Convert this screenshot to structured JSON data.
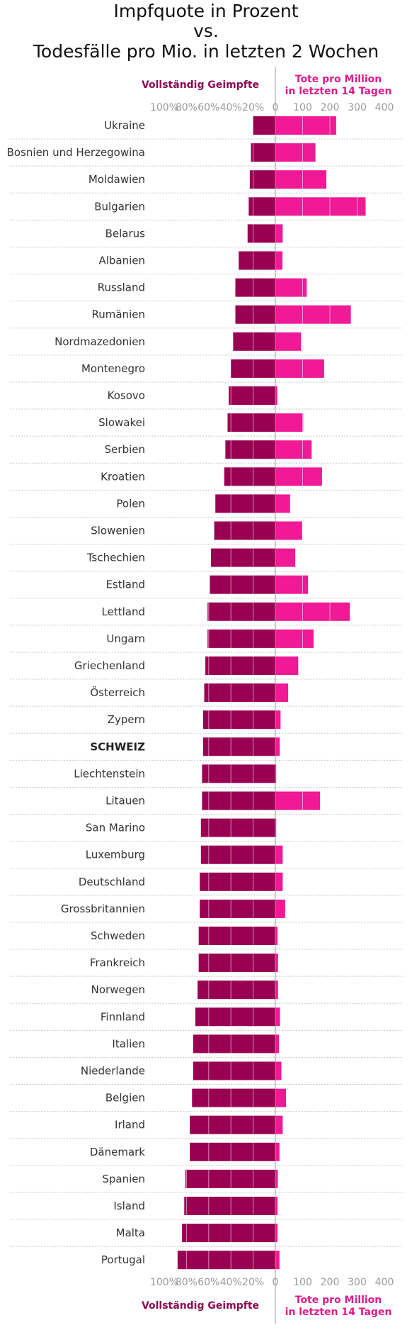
{
  "chart_data": {
    "type": "bar",
    "title_lines": [
      "Impfquote in Prozent",
      "vs.",
      "Todesfälle pro Mio. in letzten 2 Wochen"
    ],
    "left_label": "Vollständig Geimpfte",
    "right_label_lines": [
      "Tote pro Million",
      "in letzten 14 Tagen"
    ],
    "left_ticks": [
      "100%",
      "80%",
      "60%",
      "40%",
      "20%",
      "0"
    ],
    "right_ticks": [
      "100",
      "200",
      "300",
      "400"
    ],
    "left_range": [
      0,
      100
    ],
    "right_range": [
      0,
      400
    ],
    "highlight": "SCHWEIZ",
    "categories": [
      "Ukraine",
      "Bosnien und Herzegowina",
      "Moldawien",
      "Bulgarien",
      "Belarus",
      "Albanien",
      "Russland",
      "Rumänien",
      "Nordmazedonien",
      "Montenegro",
      "Kosovo",
      "Slowakei",
      "Serbien",
      "Kroatien",
      "Polen",
      "Slowenien",
      "Tschechien",
      "Estland",
      "Lettland",
      "Ungarn",
      "Griechenland",
      "Österreich",
      "Zypern",
      "SCHWEIZ",
      "Liechtenstein",
      "Litauen",
      "San Marino",
      "Luxemburg",
      "Deutschland",
      "Grossbritannien",
      "Schweden",
      "Frankreich",
      "Norwegen",
      "Finnland",
      "Italien",
      "Niederlande",
      "Belgien",
      "Irland",
      "Dänemark",
      "Spanien",
      "Island",
      "Malta",
      "Portugal"
    ],
    "series": [
      {
        "name": "Vollständig Geimpfte",
        "values": [
          20,
          22,
          23,
          24,
          25,
          33,
          36,
          36,
          38,
          40,
          42,
          43,
          45,
          46,
          54,
          55,
          58,
          59,
          61,
          61,
          63,
          64,
          65,
          65,
          66,
          66,
          67,
          67,
          68,
          68,
          69,
          69,
          70,
          72,
          74,
          74,
          75,
          77,
          77,
          81,
          82,
          84,
          88
        ]
      },
      {
        "name": "Tote pro Million in letzten 14 Tagen",
        "values": [
          223,
          147,
          187,
          331,
          27,
          26,
          115,
          277,
          94,
          179,
          7,
          102,
          133,
          171,
          54,
          98,
          73,
          120,
          273,
          140,
          84,
          47,
          19,
          16,
          3,
          164,
          3,
          27,
          27,
          36,
          8,
          10,
          10,
          17,
          13,
          22,
          39,
          27,
          15,
          9,
          8,
          8,
          15
        ]
      }
    ],
    "colors": {
      "left_bar": "#990052",
      "right_bar": "#f01996",
      "left_label": "#8c0a52",
      "right_label": "#e01a8c"
    }
  }
}
